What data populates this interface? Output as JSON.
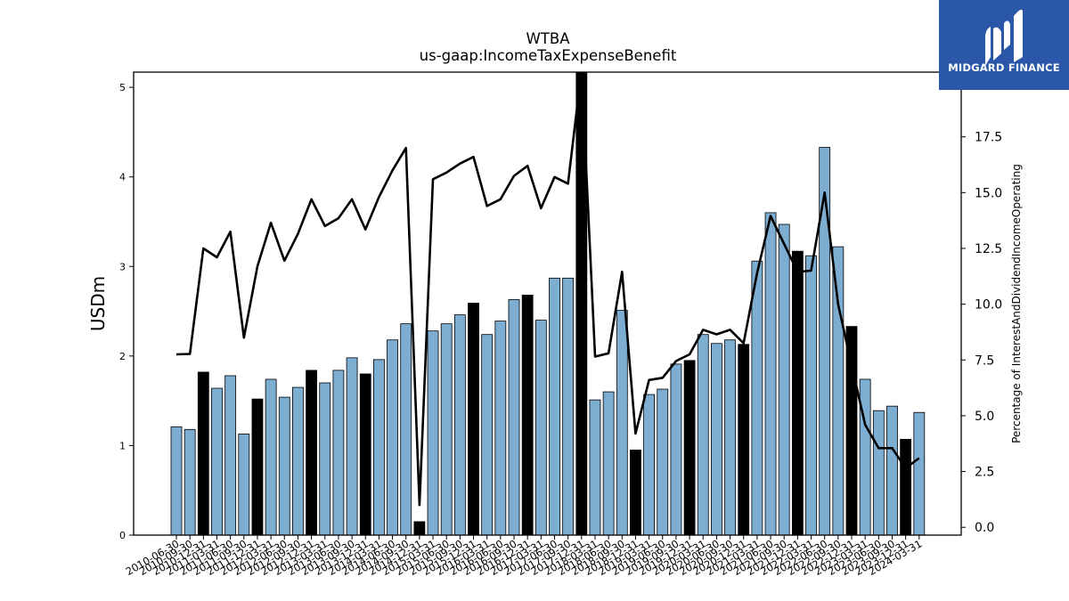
{
  "logo": {
    "text": "MIDGARD FINANCE",
    "bg": "#2b57a8"
  },
  "chart_data": {
    "type": "bar",
    "title": "WTBA",
    "subtitle": "us-gaap:IncomeTaxExpenseBenefit",
    "ylabel": "USDm",
    "y2label": "Percentage of InterestAndDividendIncomeOperating",
    "ylim": [
      0,
      5.17
    ],
    "y2lim": [
      -0.35,
      20.4
    ],
    "yticks": [
      "0",
      "1",
      "2",
      "3",
      "4",
      "5"
    ],
    "y2ticks": [
      "0.0",
      "2.5",
      "5.0",
      "7.5",
      "10.0",
      "12.5",
      "15.0",
      "17.5"
    ],
    "colors": {
      "bar": "#7eadd2",
      "bar_q4": "#000000",
      "line": "#000000"
    },
    "categories": [
      "2010-06-30",
      "2010-09-30",
      "2010-12-31",
      "2011-03-31",
      "2011-06-30",
      "2011-09-30",
      "2011-12-31",
      "2012-03-31",
      "2012-06-30",
      "2012-09-30",
      "2012-12-31",
      "2013-03-31",
      "2013-06-30",
      "2013-09-30",
      "2013-12-31",
      "2014-03-31",
      "2014-06-30",
      "2014-09-30",
      "2014-12-31",
      "2015-03-31",
      "2015-06-30",
      "2015-09-30",
      "2015-12-31",
      "2016-03-31",
      "2016-06-30",
      "2016-09-30",
      "2016-12-31",
      "2017-03-31",
      "2017-06-30",
      "2017-09-30",
      "2017-12-31",
      "2018-03-31",
      "2018-06-30",
      "2018-09-30",
      "2018-12-31",
      "2019-03-31",
      "2019-06-30",
      "2019-09-30",
      "2019-12-31",
      "2020-03-31",
      "2020-06-30",
      "2020-09-30",
      "2020-12-31",
      "2021-03-31",
      "2021-06-30",
      "2021-09-30",
      "2021-12-31",
      "2022-03-31",
      "2022-06-30",
      "2022-09-30",
      "2022-12-31",
      "2023-03-31",
      "2023-06-30",
      "2023-09-30",
      "2023-12-31",
      "2024-03-31"
    ],
    "xtick_labels": [
      "2010-06-30",
      "2010-09-30",
      "2010-12-31",
      "2011-03-31",
      "2011-06-30",
      "2011-09-30",
      "2011-12-31",
      "2012-03-31",
      "2012-06-30",
      "2012-09-30",
      "2012-12-31",
      "2013-03-31",
      "2013-06-30",
      "2013-09-30",
      "2013-12-31",
      "2014-03-31",
      "2014-06-30",
      "2014-09-30",
      "2014-12-31",
      "2015-03-31",
      "2015-06-30",
      "2015-09-30",
      "2015-12-31",
      "2016-03-31",
      "2016-06-30",
      "2016-09-30",
      "2016-12-31",
      "2017-03-31",
      "2017-06-30",
      "2017-09-30",
      "2017-12-31",
      "2018-03-31",
      "2018-06-30",
      "2018-09-30",
      "2018-12-31",
      "2019-03-31",
      "2019-06-30",
      "2019-09-30",
      "2019-12-31",
      "2020-03-31",
      "2020-06-30",
      "2020-09-30",
      "2020-12-31",
      "2021-03-31",
      "2021-06-30",
      "2021-09-30",
      "2021-12-31",
      "2022-03-31",
      "2022-06-30",
      "2022-09-30",
      "2022-12-31",
      "2023-03-31",
      "2023-06-30",
      "2023-09-30",
      "2023-12-31",
      "2024-03-31"
    ],
    "series": [
      {
        "values": [
          1.21,
          1.18,
          1.82,
          1.64,
          1.78,
          1.13,
          1.52,
          1.74,
          1.54,
          1.65,
          1.84,
          1.7,
          1.84,
          1.98,
          1.8,
          1.96,
          2.18,
          2.36,
          0.15,
          2.28,
          2.36,
          2.46,
          2.59,
          2.24,
          2.39,
          2.63,
          2.68,
          2.4,
          2.87,
          2.87,
          5.2,
          1.51,
          1.6,
          2.51,
          0.95,
          1.57,
          1.63,
          1.91,
          1.95,
          2.24,
          2.14,
          2.18,
          2.13,
          3.06,
          3.6,
          3.47,
          3.17,
          3.12,
          4.33,
          3.22,
          2.33,
          1.74,
          1.39,
          1.44,
          1.07,
          1.37
        ]
      },
      {
        "axis": "right",
        "values": [
          7.75,
          7.77,
          12.5,
          12.1,
          13.25,
          8.5,
          11.7,
          13.65,
          11.95,
          13.15,
          14.7,
          13.5,
          13.85,
          14.7,
          13.35,
          14.8,
          16.0,
          17.0,
          1.0,
          15.6,
          15.9,
          16.3,
          16.6,
          14.4,
          14.7,
          15.75,
          16.2,
          14.3,
          15.7,
          15.4,
          20.5,
          7.65,
          7.8,
          11.45,
          4.2,
          6.6,
          6.7,
          7.45,
          7.75,
          8.85,
          8.65,
          8.85,
          8.25,
          11.4,
          13.95,
          12.7,
          11.45,
          11.5,
          15.0,
          10.0,
          7.25,
          4.6,
          3.55,
          3.55,
          2.65,
          3.1
        ]
      }
    ]
  }
}
